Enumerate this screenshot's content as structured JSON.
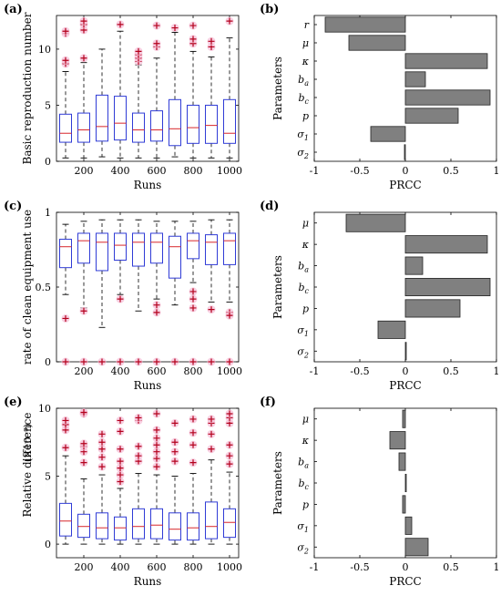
{
  "chart_data": [
    {
      "panel": "(a)",
      "type": "boxplot",
      "xlabel": "Runs",
      "ylabel": "Basic reproduction number",
      "xticks": [
        200,
        400,
        600,
        800,
        1000
      ],
      "yticks": [
        0,
        5,
        10
      ],
      "ylim": [
        0,
        13
      ],
      "categories": [
        100,
        200,
        300,
        400,
        500,
        600,
        700,
        800,
        900,
        1000
      ],
      "boxes": [
        {
          "x": 100,
          "wl": 0.3,
          "q1": 1.7,
          "median": 2.5,
          "q3": 4.2,
          "wh": 8.0,
          "outliers": [
            8.7,
            9.0,
            11.4,
            11.6
          ]
        },
        {
          "x": 200,
          "wl": 0.3,
          "q1": 1.7,
          "median": 2.8,
          "q3": 4.3,
          "wh": 8.8,
          "outliers": [
            9.2,
            11.7,
            12.2,
            12.5
          ]
        },
        {
          "x": 300,
          "wl": 0.4,
          "q1": 1.8,
          "median": 3.1,
          "q3": 5.9,
          "wh": 10.0,
          "outliers": []
        },
        {
          "x": 400,
          "wl": 0.3,
          "q1": 1.9,
          "median": 3.4,
          "q3": 5.8,
          "wh": 11.6,
          "outliers": [
            12.2
          ]
        },
        {
          "x": 500,
          "wl": 0.3,
          "q1": 1.7,
          "median": 2.8,
          "q3": 4.3,
          "wh": 8.6,
          "outliers": [
            8.9,
            9.2,
            9.5,
            9.8
          ]
        },
        {
          "x": 600,
          "wl": 0.3,
          "q1": 1.8,
          "median": 2.8,
          "q3": 4.5,
          "wh": 9.2,
          "outliers": [
            10.2,
            10.5,
            12.1
          ]
        },
        {
          "x": 700,
          "wl": 0.4,
          "q1": 1.4,
          "median": 2.9,
          "q3": 5.5,
          "wh": 11.5,
          "outliers": [
            11.9
          ]
        },
        {
          "x": 800,
          "wl": 0.3,
          "q1": 1.6,
          "median": 3.0,
          "q3": 5.0,
          "wh": 9.8,
          "outliers": [
            10.5,
            10.9,
            12.1
          ]
        },
        {
          "x": 900,
          "wl": 0.3,
          "q1": 1.6,
          "median": 3.2,
          "q3": 5.0,
          "wh": 9.3,
          "outliers": [
            10.2,
            10.7
          ]
        },
        {
          "x": 1000,
          "wl": 0.3,
          "q1": 1.6,
          "median": 2.5,
          "q3": 5.5,
          "wh": 11.0,
          "outliers": [
            12.5
          ]
        }
      ]
    },
    {
      "panel": "(b)",
      "type": "bar",
      "orientation": "horizontal",
      "xlabel": "PRCC",
      "ylabel": "Parameters",
      "xticks": [
        -1,
        -0.5,
        0,
        0.5,
        1
      ],
      "xlim": [
        -1,
        1
      ],
      "categories": [
        "r",
        "μ",
        "κ",
        "b_a",
        "b_c",
        "p",
        "σ_1",
        "σ_2"
      ],
      "values": [
        -0.88,
        -0.62,
        0.9,
        0.22,
        0.93,
        0.58,
        -0.38,
        -0.01
      ]
    },
    {
      "panel": "(c)",
      "type": "boxplot",
      "xlabel": "Runs",
      "ylabel": "rate of clean equipment use",
      "xticks": [
        200,
        400,
        600,
        800,
        1000
      ],
      "yticks": [
        0,
        0.5,
        1
      ],
      "ylim": [
        0,
        1
      ],
      "categories": [
        100,
        200,
        300,
        400,
        500,
        600,
        700,
        800,
        900,
        1000
      ],
      "boxes": [
        {
          "x": 100,
          "wl": 0.45,
          "q1": 0.63,
          "median": 0.77,
          "q3": 0.82,
          "wh": 0.92,
          "outliers": [
            0.29,
            0.0
          ]
        },
        {
          "x": 200,
          "wl": 0.36,
          "q1": 0.66,
          "median": 0.81,
          "q3": 0.86,
          "wh": 0.94,
          "outliers": [
            0.34,
            0.0
          ]
        },
        {
          "x": 300,
          "wl": 0.23,
          "q1": 0.61,
          "median": 0.8,
          "q3": 0.86,
          "wh": 0.95,
          "outliers": [
            0.0
          ]
        },
        {
          "x": 400,
          "wl": 0.45,
          "q1": 0.68,
          "median": 0.78,
          "q3": 0.86,
          "wh": 0.95,
          "outliers": [
            0.42,
            0.0
          ]
        },
        {
          "x": 500,
          "wl": 0.34,
          "q1": 0.64,
          "median": 0.8,
          "q3": 0.86,
          "wh": 0.95,
          "outliers": [
            0.0
          ]
        },
        {
          "x": 600,
          "wl": 0.42,
          "q1": 0.66,
          "median": 0.8,
          "q3": 0.86,
          "wh": 0.94,
          "outliers": [
            0.38,
            0.33,
            0.0
          ]
        },
        {
          "x": 700,
          "wl": 0.38,
          "q1": 0.56,
          "median": 0.77,
          "q3": 0.84,
          "wh": 0.94,
          "outliers": [
            0.0
          ]
        },
        {
          "x": 800,
          "wl": 0.53,
          "q1": 0.69,
          "median": 0.81,
          "q3": 0.86,
          "wh": 0.94,
          "outliers": [
            0.47,
            0.42,
            0.36,
            0.0
          ]
        },
        {
          "x": 900,
          "wl": 0.4,
          "q1": 0.65,
          "median": 0.8,
          "q3": 0.85,
          "wh": 0.95,
          "outliers": [
            0.35,
            0.0
          ]
        },
        {
          "x": 1000,
          "wl": 0.4,
          "q1": 0.65,
          "median": 0.81,
          "q3": 0.86,
          "wh": 0.95,
          "outliers": [
            0.33,
            0.31,
            0.0
          ]
        }
      ]
    },
    {
      "panel": "(d)",
      "type": "bar",
      "orientation": "horizontal",
      "xlabel": "PRCC",
      "ylabel": "Parameters",
      "xticks": [
        -1,
        -0.5,
        0,
        0.5,
        1
      ],
      "xlim": [
        -1,
        1
      ],
      "categories": [
        "μ",
        "κ",
        "b_a",
        "b_c",
        "p",
        "σ_1",
        "σ_2"
      ],
      "values": [
        -0.65,
        0.9,
        0.19,
        0.93,
        0.6,
        -0.3,
        0.01
      ]
    },
    {
      "panel": "(e)",
      "type": "boxplot",
      "xlabel": "Runs",
      "ylabel": "Relative difference",
      "yunit": "(×10⁻³)",
      "xticks": [
        200,
        400,
        600,
        800,
        1000
      ],
      "yticks": [
        0,
        5,
        10
      ],
      "ylim": [
        -1,
        10
      ],
      "categories": [
        100,
        200,
        300,
        400,
        500,
        600,
        700,
        800,
        900,
        1000
      ],
      "boxes": [
        {
          "x": 100,
          "wl": 0,
          "q1": 0.6,
          "median": 1.7,
          "q3": 3.0,
          "wh": 6.5,
          "outliers": [
            7.1,
            8.4,
            8.8,
            9.1
          ]
        },
        {
          "x": 200,
          "wl": 0,
          "q1": 0.5,
          "median": 1.3,
          "q3": 2.2,
          "wh": 4.8,
          "outliers": [
            6.0,
            6.8,
            7.2,
            7.4,
            9.6,
            9.7
          ]
        },
        {
          "x": 300,
          "wl": 0,
          "q1": 0.4,
          "median": 1.2,
          "q3": 2.3,
          "wh": 5.1,
          "outliers": [
            5.7,
            6.4,
            7.0,
            7.5,
            8.1
          ]
        },
        {
          "x": 400,
          "wl": 0,
          "q1": 0.3,
          "median": 1.2,
          "q3": 2.0,
          "wh": 4.1,
          "outliers": [
            4.6,
            5.1,
            5.6,
            6.1,
            7.0,
            8.3,
            9.1
          ]
        },
        {
          "x": 500,
          "wl": 0,
          "q1": 0.4,
          "median": 1.3,
          "q3": 2.6,
          "wh": 5.2,
          "outliers": [
            6.1,
            6.5,
            7.2,
            9.1,
            9.3
          ]
        },
        {
          "x": 600,
          "wl": 0,
          "q1": 0.4,
          "median": 1.4,
          "q3": 2.6,
          "wh": 5.1,
          "outliers": [
            5.7,
            6.3,
            6.8,
            7.3,
            7.8,
            8.4,
            9.6
          ]
        },
        {
          "x": 700,
          "wl": 0,
          "q1": 0.3,
          "median": 1.1,
          "q3": 2.3,
          "wh": 5.0,
          "outliers": [
            6.1,
            6.8,
            7.5,
            8.9
          ]
        },
        {
          "x": 800,
          "wl": 0,
          "q1": 0.3,
          "median": 1.2,
          "q3": 2.3,
          "wh": 5.2,
          "outliers": [
            6.0,
            7.3,
            8.2,
            9.2
          ]
        },
        {
          "x": 900,
          "wl": 0,
          "q1": 0.4,
          "median": 1.3,
          "q3": 3.1,
          "wh": 6.2,
          "outliers": [
            7.0,
            8.1,
            8.9,
            9.2
          ]
        },
        {
          "x": 1000,
          "wl": 0,
          "q1": 0.5,
          "median": 1.6,
          "q3": 2.6,
          "wh": 5.3,
          "outliers": [
            5.9,
            6.5,
            7.3,
            8.9,
            9.3,
            9.6
          ]
        }
      ]
    },
    {
      "panel": "(f)",
      "type": "bar",
      "orientation": "horizontal",
      "xlabel": "PRCC",
      "ylabel": "Parameters",
      "xticks": [
        -1,
        -0.5,
        0,
        0.5,
        1
      ],
      "xlim": [
        -1,
        1
      ],
      "categories": [
        "μ",
        "κ",
        "b_a",
        "b_c",
        "p",
        "σ_1",
        "σ_2"
      ],
      "values": [
        -0.03,
        -0.17,
        -0.07,
        0.01,
        -0.03,
        0.07,
        0.25
      ]
    }
  ],
  "colors": {
    "box": "#2f3bd6",
    "median": "#d7262b",
    "outlier": "#b3001b",
    "outlier_halo": "#f6c3da",
    "bar_fill": "#808080",
    "bar_edge": "#222222",
    "axis": "#000000"
  }
}
